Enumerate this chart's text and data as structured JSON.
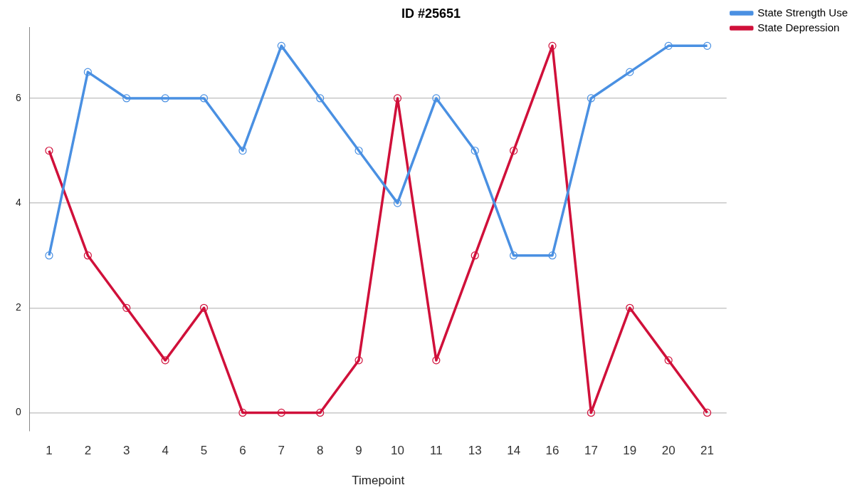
{
  "chart_data": {
    "type": "line",
    "title": "ID #25651",
    "xlabel": "Timepoint",
    "categories": [
      "1",
      "2",
      "3",
      "4",
      "5",
      "6",
      "7",
      "8",
      "9",
      "10",
      "11",
      "13",
      "14",
      "16",
      "17",
      "19",
      "20",
      "21"
    ],
    "series": [
      {
        "name": "State Strength Use",
        "color": "#4a90e2",
        "values": [
          3,
          6.5,
          6,
          6,
          6,
          5,
          7,
          6,
          5,
          4,
          6,
          5,
          3,
          3,
          6,
          6.5,
          7,
          7
        ]
      },
      {
        "name": "State Depression",
        "color": "#d0103a",
        "values": [
          5,
          3,
          2,
          1,
          2,
          0,
          0,
          0,
          1,
          6,
          1,
          3,
          5,
          7,
          0,
          2,
          1,
          0
        ]
      }
    ],
    "ylim": [
      -0.35,
      7.35
    ],
    "yticks": [
      0,
      2,
      4,
      6
    ],
    "grid": "y",
    "legend": "top right",
    "marker": "circle",
    "line_style": "solid"
  }
}
